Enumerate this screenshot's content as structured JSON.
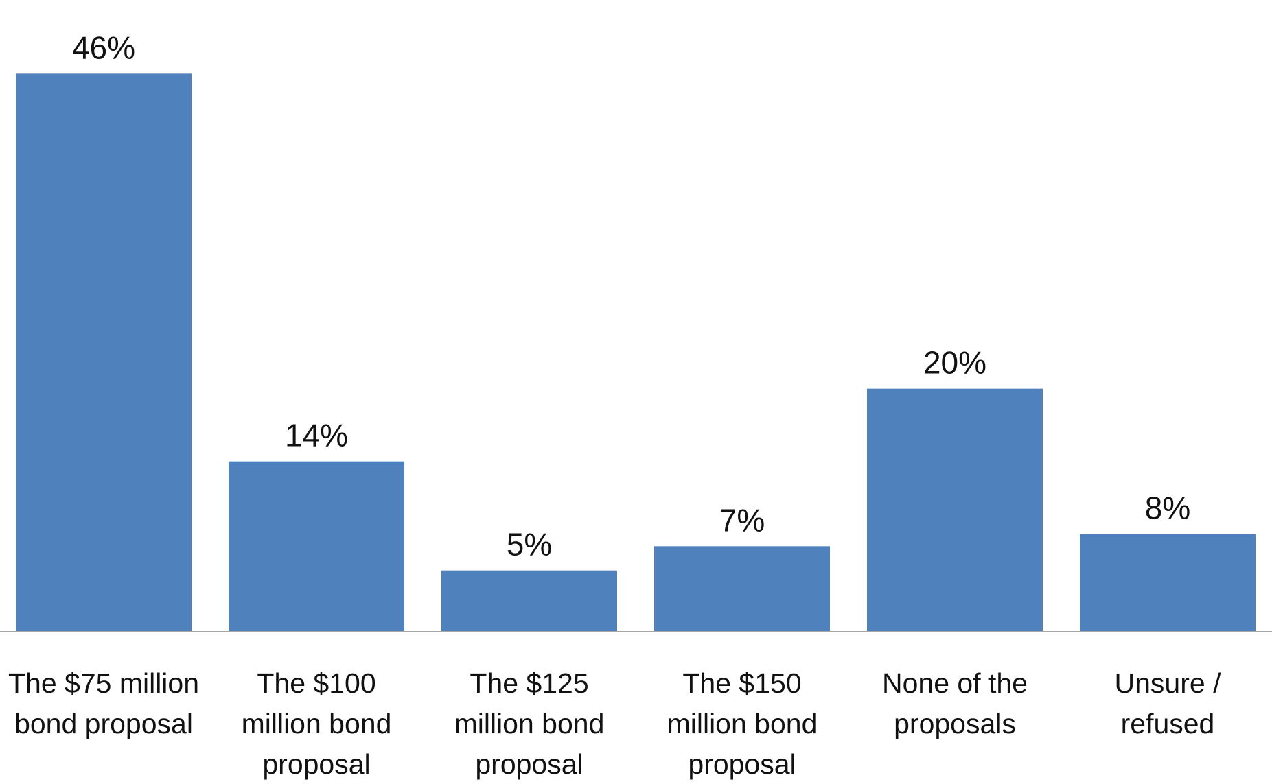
{
  "chart_data": {
    "type": "bar",
    "title": "",
    "xlabel": "",
    "ylabel": "",
    "ylim": [
      0,
      48
    ],
    "grid": false,
    "legend": "none",
    "bar_color": "#4f81bd",
    "axis_color": "#a6a6a6",
    "value_suffix": "%",
    "categories": [
      [
        "The $75 million",
        "bond proposal"
      ],
      [
        "The $100",
        "million bond",
        "proposal"
      ],
      [
        "The $125",
        "million bond",
        "proposal"
      ],
      [
        "The $150",
        "million bond",
        "proposal"
      ],
      [
        "None of the",
        "proposals"
      ],
      [
        "Unsure /",
        "refused"
      ]
    ],
    "values": [
      46,
      14,
      5,
      7,
      20,
      8
    ],
    "data_labels": [
      "46%",
      "14%",
      "5%",
      "7%",
      "20%",
      "8%"
    ]
  }
}
